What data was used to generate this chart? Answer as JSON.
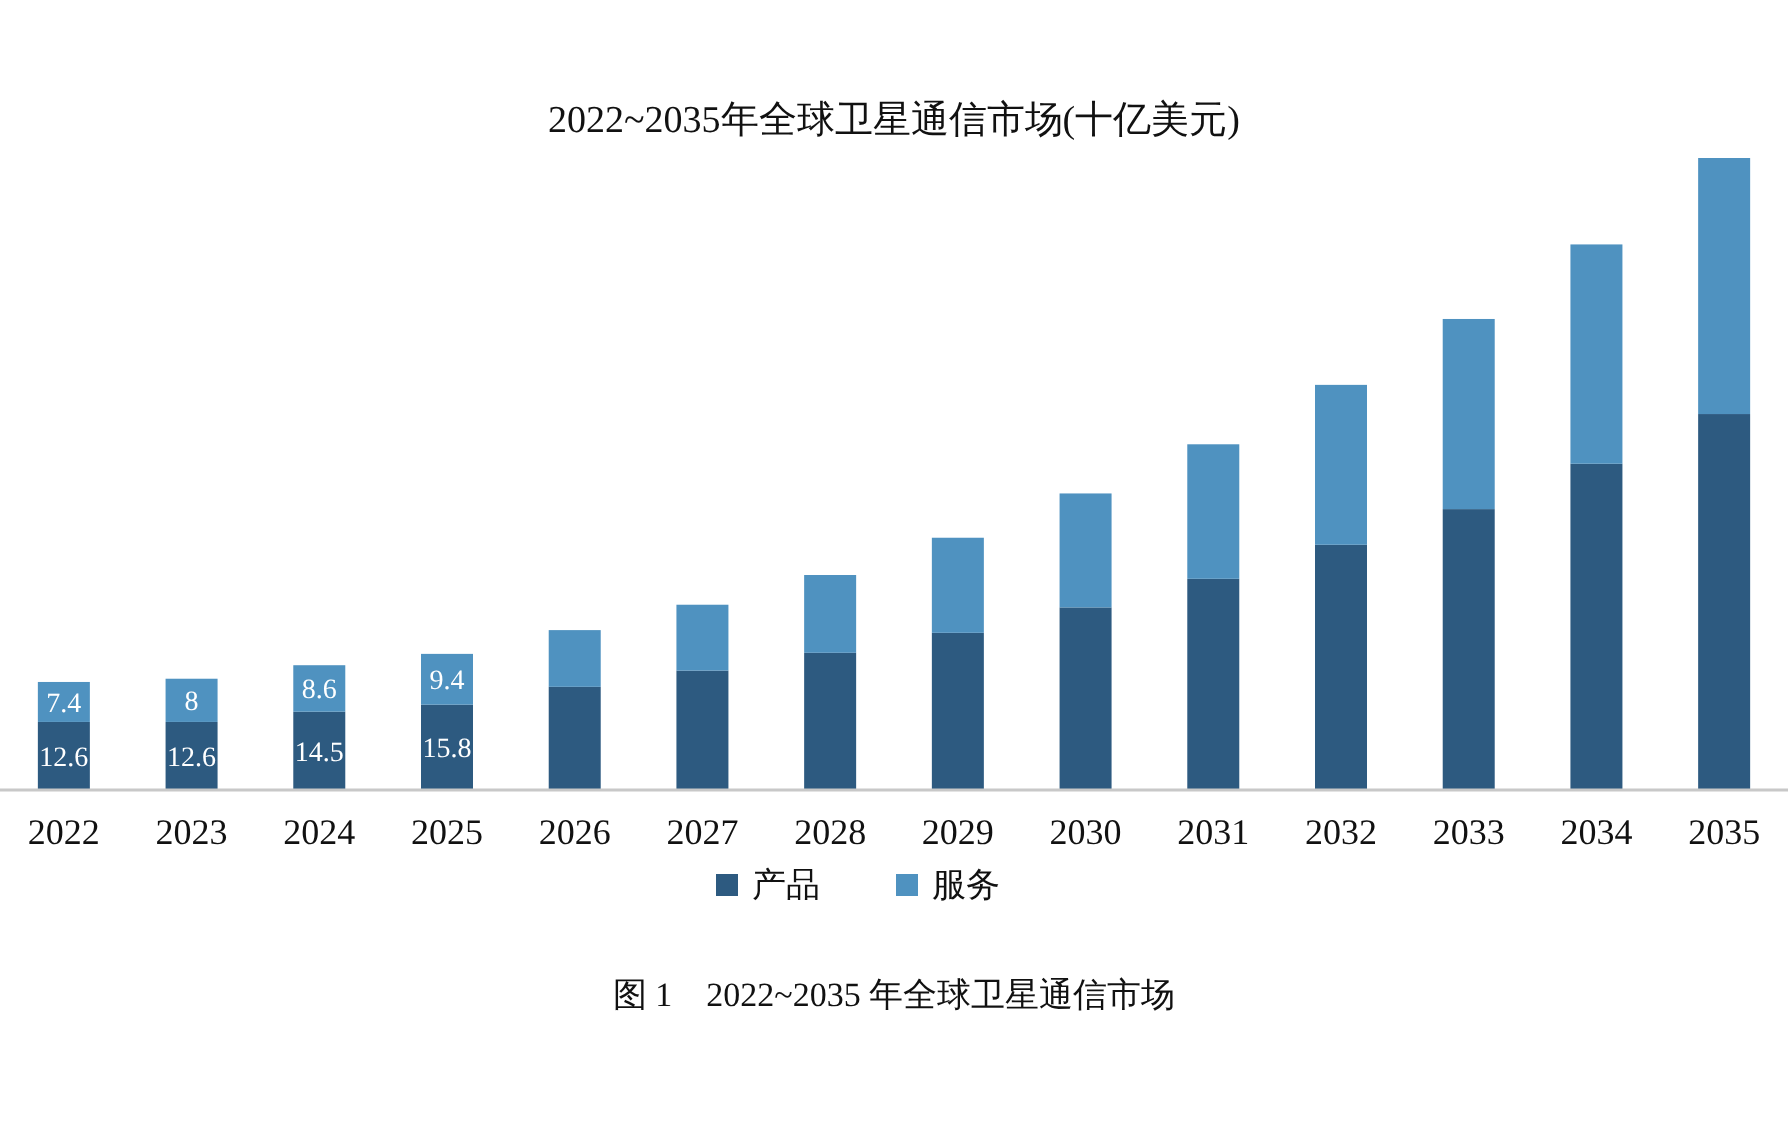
{
  "chart_data": {
    "type": "bar",
    "title": "2022~2035年全球卫星通信市场(十亿美元)",
    "categories": [
      "2022",
      "2023",
      "2024",
      "2025",
      "2026",
      "2027",
      "2028",
      "2029",
      "2030",
      "2031",
      "2032",
      "2033",
      "2034",
      "2035"
    ],
    "stacked": true,
    "legend": "bottom",
    "series": [
      {
        "name": "产品",
        "color": "#2d5a80",
        "values": [
          12.6,
          12.6,
          14.5,
          15.8,
          19.1,
          22.1,
          25.4,
          29.1,
          33.8,
          39.1,
          45.4,
          52.0,
          60.4,
          69.6
        ],
        "value_labels": [
          "12.6",
          "12.6",
          "14.5",
          "15.8",
          null,
          null,
          null,
          null,
          null,
          null,
          null,
          null,
          null,
          null
        ]
      },
      {
        "name": "服务",
        "color": "#4f92c0",
        "values": [
          7.4,
          8,
          8.6,
          9.4,
          10.5,
          12.2,
          14.4,
          17.6,
          21.1,
          24.9,
          29.6,
          35.2,
          40.6,
          47.4
        ],
        "value_labels": [
          "7.4",
          "8",
          "8.6",
          "9.4",
          null,
          null,
          null,
          null,
          null,
          null,
          null,
          null,
          null,
          null
        ]
      }
    ],
    "annotations": [
      "图 1　2022~2035 年全球卫星通信市场"
    ]
  }
}
